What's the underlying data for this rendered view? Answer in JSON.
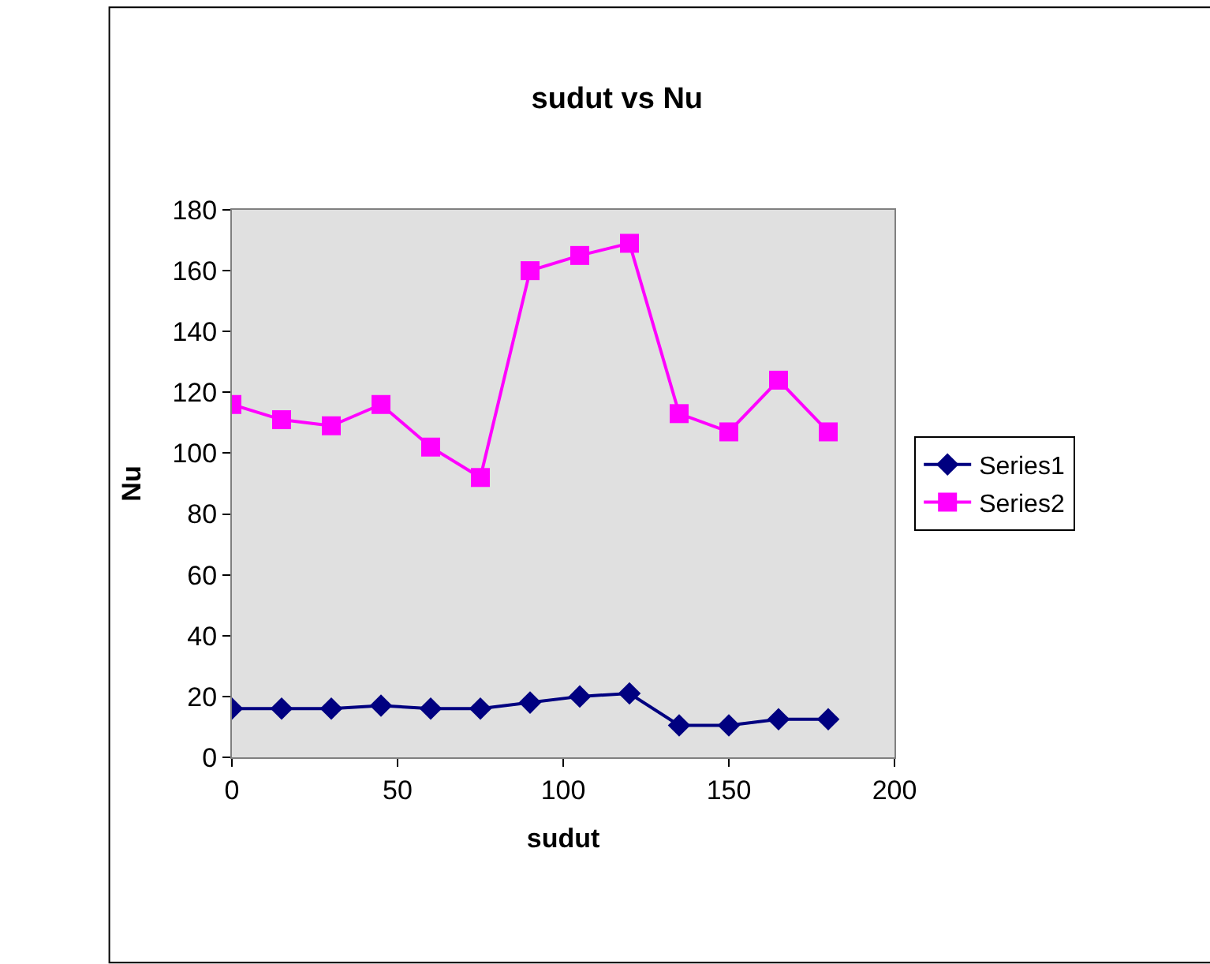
{
  "chart_data": {
    "type": "line",
    "title": "sudut vs Nu",
    "xlabel": "sudut",
    "ylabel": "Nu",
    "x": [
      0,
      15,
      30,
      45,
      60,
      75,
      90,
      105,
      120,
      135,
      150,
      165,
      180
    ],
    "series": [
      {
        "name": "Series1",
        "color": "#000080",
        "marker": "diamond",
        "values": [
          16,
          16,
          16,
          17,
          16,
          16,
          18,
          20,
          21,
          10.5,
          10.5,
          12.5,
          12.5
        ]
      },
      {
        "name": "Series2",
        "color": "#ff00ff",
        "marker": "square",
        "values": [
          116,
          111,
          109,
          116,
          102,
          92,
          160,
          165,
          169,
          113,
          107,
          124,
          107
        ]
      }
    ],
    "xlim": [
      0,
      200
    ],
    "xticks": [
      0,
      50,
      100,
      150,
      200
    ],
    "ylim": [
      0,
      180
    ],
    "yticks": [
      0,
      20,
      40,
      60,
      80,
      100,
      120,
      140,
      160,
      180
    ],
    "grid": false,
    "legend": "right",
    "line_style": "solid"
  }
}
